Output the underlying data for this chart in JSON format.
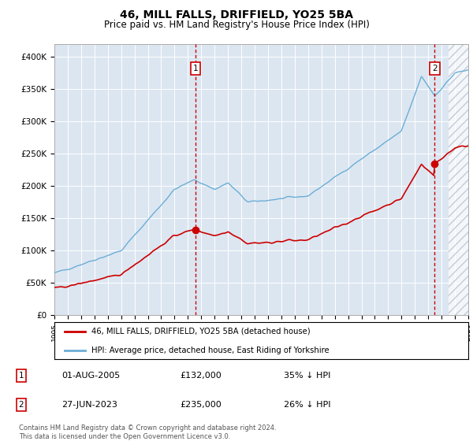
{
  "title": "46, MILL FALLS, DRIFFIELD, YO25 5BA",
  "subtitle": "Price paid vs. HM Land Registry's House Price Index (HPI)",
  "ylim": [
    0,
    420000
  ],
  "yticks": [
    0,
    50000,
    100000,
    150000,
    200000,
    250000,
    300000,
    350000,
    400000
  ],
  "ytick_labels": [
    "£0",
    "£50K",
    "£100K",
    "£150K",
    "£200K",
    "£250K",
    "£300K",
    "£350K",
    "£400K"
  ],
  "year_start": 1995,
  "year_end": 2026,
  "hpi_color": "#6baed6",
  "price_color": "#cc0000",
  "vline_color": "#cc0000",
  "transaction1_year": 2005.58,
  "transaction1_price": 132000,
  "transaction2_year": 2023.49,
  "transaction2_price": 235000,
  "legend_label1": "46, MILL FALLS, DRIFFIELD, YO25 5BA (detached house)",
  "legend_label2": "HPI: Average price, detached house, East Riding of Yorkshire",
  "annotation1_date": "01-AUG-2005",
  "annotation1_price": "£132,000",
  "annotation1_hpi": "35% ↓ HPI",
  "annotation2_date": "27-JUN-2023",
  "annotation2_price": "£235,000",
  "annotation2_hpi": "26% ↓ HPI",
  "footnote": "Contains HM Land Registry data © Crown copyright and database right 2024.\nThis data is licensed under the Open Government Licence v3.0.",
  "background_color": "#dce6f1",
  "fig_background": "#ffffff",
  "title_fontsize": 10,
  "subtitle_fontsize": 8.5
}
